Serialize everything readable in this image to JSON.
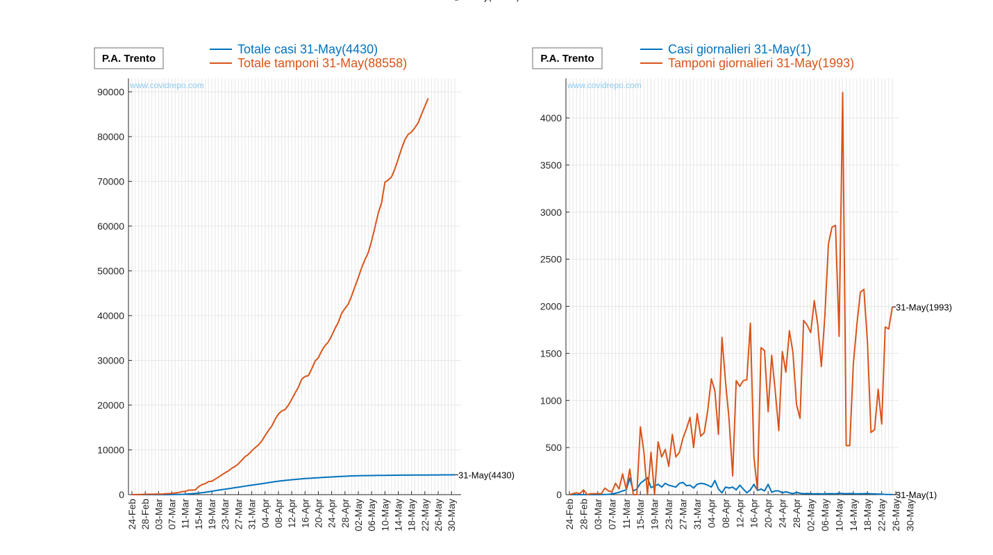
{
  "colors": {
    "blue": "#0072BD",
    "orange": "#D95319",
    "watermark": "#8ec9ee",
    "axis": "#262626",
    "grid": "#e6e6e6"
  },
  "chart_data": [
    {
      "type": "line",
      "region_label": "P.A. Trento",
      "watermark": "www.covidrepo.com",
      "ylim": [
        0,
        93000
      ],
      "yticks": [
        "0",
        "10000",
        "20000",
        "30000",
        "40000",
        "50000",
        "60000",
        "70000",
        "80000",
        "90000"
      ],
      "x_tick_labels": [
        "24-Feb",
        "28-Feb",
        "03-Mar",
        "07-Mar",
        "11-Mar",
        "15-Mar",
        "19-Mar",
        "23-Mar",
        "27-Mar",
        "31-Mar",
        "04-Apr",
        "08-Apr",
        "12-Apr",
        "16-Apr",
        "20-Apr",
        "24-Apr",
        "28-Apr",
        "02-May",
        "06-May",
        "10-May",
        "14-May",
        "18-May",
        "22-May",
        "26-May",
        "30-May"
      ],
      "x_start": "24-Feb",
      "x_end": "31-May",
      "grid": true,
      "series": [
        {
          "name": "Totale casi 31-May(4430)",
          "end_label": "31-May(4430)",
          "color": "#0072BD",
          "values": [
            0,
            0,
            0,
            0,
            0,
            0,
            0,
            1,
            1,
            2,
            4,
            6,
            15,
            25,
            45,
            69,
            100,
            160,
            215,
            275,
            340,
            420,
            530,
            640,
            760,
            880,
            1000,
            1110,
            1220,
            1330,
            1440,
            1560,
            1680,
            1790,
            1900,
            2010,
            2120,
            2230,
            2340,
            2450,
            2560,
            2680,
            2790,
            2900,
            3000,
            3100,
            3180,
            3250,
            3330,
            3400,
            3470,
            3530,
            3590,
            3640,
            3690,
            3730,
            3780,
            3830,
            3870,
            3910,
            3950,
            4000,
            4040,
            4080,
            4110,
            4150,
            4180,
            4200,
            4220,
            4240,
            4250,
            4260,
            4270,
            4280,
            4290,
            4300,
            4310,
            4320,
            4330,
            4340,
            4345,
            4350,
            4355,
            4360,
            4365,
            4370,
            4375,
            4380,
            4385,
            4390,
            4395,
            4400,
            4405,
            4410,
            4415,
            4420,
            4425,
            4430
          ]
        },
        {
          "name": "Totale tamponi 31-May(88558)",
          "end_label": "31-May(88558)",
          "color": "#D95319",
          "values": [
            0,
            10,
            30,
            40,
            90,
            90,
            100,
            110,
            120,
            130,
            200,
            240,
            270,
            390,
            450,
            670,
            730,
            1000,
            1000,
            1050,
            1770,
            2220,
            2460,
            2910,
            3000,
            3450,
            3900,
            4400,
            4900,
            5300,
            5900,
            6300,
            6900,
            7700,
            8500,
            9000,
            9800,
            10500,
            11100,
            12000,
            13200,
            14300,
            15300,
            16800,
            18000,
            18700,
            19000,
            20000,
            21300,
            22700,
            24000,
            25800,
            26400,
            26600,
            28100,
            29800,
            30600,
            32100,
            33300,
            34100,
            35500,
            37100,
            38500,
            40500,
            41600,
            42600,
            44400,
            46500,
            48500,
            50700,
            52500,
            54100,
            56700,
            59700,
            62900,
            65200,
            69800,
            70300,
            71000,
            72800,
            75000,
            77300,
            79300,
            80500,
            81000,
            82000,
            83100,
            85000,
            86800,
            88558
          ]
        }
      ]
    },
    {
      "type": "line",
      "region_label": "P.A. Trento",
      "watermark": "www.covidrepo.com",
      "ylim": [
        0,
        4420
      ],
      "yticks": [
        "0",
        "500",
        "1000",
        "1500",
        "2000",
        "2500",
        "3000",
        "3500",
        "4000"
      ],
      "x_tick_labels": [
        "24-Feb",
        "28-Feb",
        "03-Mar",
        "07-Mar",
        "11-Mar",
        "15-Mar",
        "19-Mar",
        "23-Mar",
        "27-Mar",
        "31-Mar",
        "04-Apr",
        "08-Apr",
        "12-Apr",
        "16-Apr",
        "20-Apr",
        "24-Apr",
        "28-Apr",
        "02-May",
        "06-May",
        "10-May",
        "14-May",
        "18-May",
        "22-May",
        "26-May",
        "30-May"
      ],
      "x_start": "24-Feb",
      "x_end": "31-May",
      "grid": true,
      "series": [
        {
          "name": "Casi giornalieri 31-May(1)",
          "end_label": "31-May(1)",
          "color": "#0072BD",
          "values": [
            0,
            0,
            0,
            0,
            0,
            0,
            0,
            0,
            0,
            1,
            2,
            3,
            8,
            15,
            25,
            40,
            50,
            175,
            40,
            60,
            120,
            150,
            180,
            75,
            90,
            110,
            80,
            120,
            100,
            90,
            80,
            120,
            130,
            95,
            100,
            70,
            110,
            120,
            115,
            100,
            80,
            150,
            60,
            20,
            80,
            70,
            80,
            50,
            100,
            60,
            20,
            50,
            110,
            45,
            60,
            40,
            110,
            25,
            40,
            40,
            20,
            30,
            20,
            10,
            25,
            15,
            10,
            12,
            10,
            8,
            10,
            8,
            8,
            10,
            10,
            8,
            15,
            12,
            10,
            12,
            10,
            8,
            10,
            10,
            12,
            8,
            8,
            6,
            5,
            3,
            2,
            1
          ]
        },
        {
          "name": "Tamponi giornalieri 31-May(1993)",
          "end_label": "31-May(1993)",
          "color": "#D95319",
          "values": [
            0,
            10,
            20,
            10,
            50,
            0,
            10,
            10,
            10,
            10,
            70,
            40,
            30,
            120,
            60,
            220,
            60,
            270,
            0,
            0,
            720,
            450,
            0,
            450,
            0,
            560,
            400,
            480,
            300,
            640,
            400,
            450,
            600,
            700,
            820,
            500,
            860,
            620,
            660,
            900,
            1230,
            1100,
            640,
            1670,
            1200,
            800,
            200,
            1210,
            1150,
            1210,
            1220,
            1820,
            400,
            50,
            1560,
            1530,
            880,
            1480,
            1100,
            680,
            1520,
            1300,
            1740,
            1510,
            960,
            810,
            1850,
            1800,
            1720,
            2060,
            1800,
            1360,
            1900,
            2660,
            2840,
            2860,
            1680,
            4270,
            520,
            520,
            1380,
            1800,
            2150,
            2180,
            1620,
            660,
            690,
            1120,
            750,
            1780,
            1760,
            1993
          ]
        }
      ]
    }
  ]
}
